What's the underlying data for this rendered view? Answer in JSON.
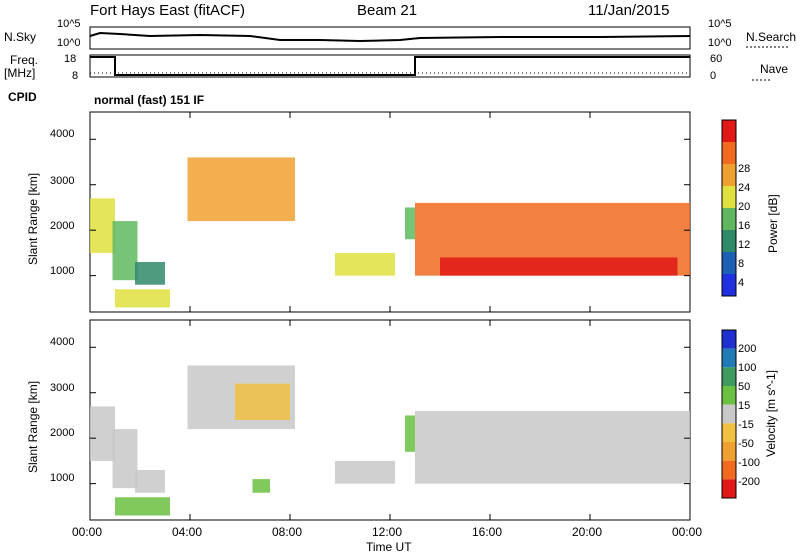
{
  "header": {
    "station": "Fort Hays East (fitACF)",
    "beam": "Beam 21",
    "date": "11/Jan/2015"
  },
  "strip": {
    "nsky_label": "N.Sky",
    "nsky_ticks": [
      "10^5",
      "10^0"
    ],
    "nsearch_label": "N.Search",
    "nsearch_ticks": [
      "10^5",
      "10^0"
    ],
    "freq_label_1": "Freq.",
    "freq_label_2": "[MHz]",
    "freq_ticks": [
      "18",
      "8"
    ],
    "nave_label": "Nave",
    "nave_ticks": [
      "60",
      "0"
    ],
    "cpid_label": "CPID",
    "cpid_text": "normal (fast) 151 IF"
  },
  "chart_data": [
    {
      "type": "heatmap",
      "name": "power-panel",
      "xlabel": "Time UT",
      "ylabel": "Slant Range [km]",
      "x_range_hours": [
        0,
        24
      ],
      "y_range_km": [
        200,
        4600
      ],
      "y_ticks": [
        "1000",
        "2000",
        "3000",
        "4000"
      ],
      "colorbar_label": "Power [dB]",
      "colorbar_ticks": [
        "4",
        "8",
        "12",
        "16",
        "20",
        "24",
        "28"
      ],
      "colorbar_colors": [
        "#2030e0",
        "#1d5fb5",
        "#2f8a6a",
        "#5fb85f",
        "#e0e040",
        "#f0a030",
        "#f06a20",
        "#e01818"
      ],
      "echo_regions": [
        {
          "t0": 0.0,
          "t1": 1.0,
          "r0": 1500,
          "r1": 2700,
          "level": 4
        },
        {
          "t0": 0.9,
          "t1": 1.9,
          "r0": 900,
          "r1": 2200,
          "level": 3
        },
        {
          "t0": 1.0,
          "t1": 3.2,
          "r0": 300,
          "r1": 700,
          "level": 4
        },
        {
          "t0": 1.8,
          "t1": 3.0,
          "r0": 800,
          "r1": 1300,
          "level": 2
        },
        {
          "t0": 3.9,
          "t1": 8.2,
          "r0": 2200,
          "r1": 3600,
          "level": 5
        },
        {
          "t0": 9.8,
          "t1": 12.2,
          "r0": 1000,
          "r1": 1500,
          "level": 4
        },
        {
          "t0": 12.6,
          "t1": 13.0,
          "r0": 1800,
          "r1": 2500,
          "level": 3
        },
        {
          "t0": 13.0,
          "t1": 24.0,
          "r0": 1000,
          "r1": 2600,
          "level": 6
        },
        {
          "t0": 14.0,
          "t1": 23.5,
          "r0": 1000,
          "r1": 1400,
          "level": 7
        }
      ]
    },
    {
      "type": "heatmap",
      "name": "velocity-panel",
      "xlabel": "Time UT",
      "ylabel": "Slant Range [km]",
      "x_range_hours": [
        0,
        24
      ],
      "y_range_km": [
        200,
        4600
      ],
      "y_ticks": [
        "1000",
        "2000",
        "3000",
        "4000"
      ],
      "x_ticks": [
        "00:00",
        "04:00",
        "08:00",
        "12:00",
        "16:00",
        "20:00",
        "00:00"
      ],
      "colorbar_label": "Velocity [m s^-1]",
      "colorbar_ticks": [
        "200",
        "100",
        "50",
        "15",
        "-15",
        "-50",
        "-100",
        "-200"
      ],
      "colorbar_colors": [
        "#2030d0",
        "#1f7ab5",
        "#3f9a5f",
        "#6ac040",
        "#c8c8c8",
        "#f0c040",
        "#f0a030",
        "#f06a20",
        "#e01818"
      ],
      "echo_regions": [
        {
          "t0": 0.0,
          "t1": 1.0,
          "r0": 1500,
          "r1": 2700,
          "color": "#c8c8c8"
        },
        {
          "t0": 0.9,
          "t1": 1.9,
          "r0": 900,
          "r1": 2200,
          "color": "#c8c8c8"
        },
        {
          "t0": 1.0,
          "t1": 3.2,
          "r0": 300,
          "r1": 700,
          "color": "#6ac040"
        },
        {
          "t0": 1.8,
          "t1": 3.0,
          "r0": 800,
          "r1": 1300,
          "color": "#c8c8c8"
        },
        {
          "t0": 3.9,
          "t1": 8.2,
          "r0": 2200,
          "r1": 3600,
          "color": "#c8c8c8"
        },
        {
          "t0": 5.8,
          "t1": 8.0,
          "r0": 2400,
          "r1": 3200,
          "color": "#f0c040"
        },
        {
          "t0": 6.5,
          "t1": 7.2,
          "r0": 800,
          "r1": 1100,
          "color": "#6ac040"
        },
        {
          "t0": 9.8,
          "t1": 12.2,
          "r0": 1000,
          "r1": 1500,
          "color": "#c8c8c8"
        },
        {
          "t0": 12.6,
          "t1": 13.0,
          "r0": 1700,
          "r1": 2500,
          "color": "#6ac040"
        },
        {
          "t0": 13.0,
          "t1": 24.0,
          "r0": 1000,
          "r1": 2600,
          "color": "#c8c8c8"
        }
      ]
    }
  ]
}
